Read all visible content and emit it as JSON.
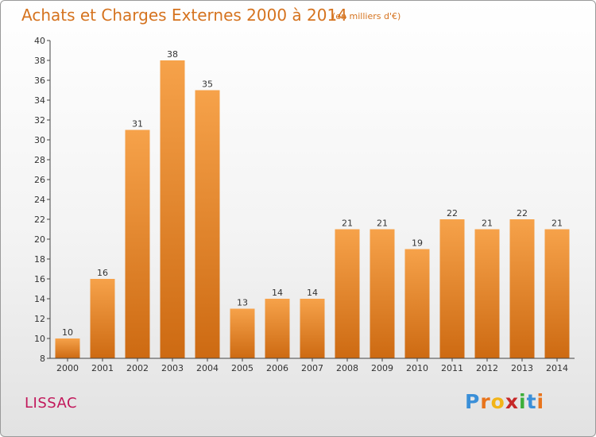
{
  "header": {
    "title": "Achats et Charges Externes 2000 à 2014",
    "unit": "(en milliers d'€)"
  },
  "commune": "LISSAC",
  "logo": {
    "text": "Proxiti"
  },
  "colors": {
    "bar_light": "#f6a24a",
    "bar_dark": "#cd6a12",
    "axis": "#444444",
    "title": "#d5731f",
    "commune": "#c2185b"
  },
  "chart_data": {
    "type": "bar",
    "title": "Achats et Charges Externes 2000 à 2014",
    "subtitle": "(en milliers d'€)",
    "xlabel": "",
    "ylabel": "",
    "categories": [
      "2000",
      "2001",
      "2002",
      "2003",
      "2004",
      "2005",
      "2006",
      "2007",
      "2008",
      "2009",
      "2010",
      "2011",
      "2012",
      "2013",
      "2014"
    ],
    "values": [
      10,
      16,
      31,
      38,
      35,
      13,
      14,
      14,
      21,
      21,
      19,
      22,
      21,
      22,
      21
    ],
    "ylim": [
      8,
      40
    ],
    "yticks": [
      "8",
      "10",
      "12",
      "14",
      "16",
      "18",
      "20",
      "22",
      "24",
      "26",
      "28",
      "30",
      "32",
      "34",
      "36",
      "38",
      "40"
    ],
    "grid": false,
    "legend": "none",
    "data_labels": true
  }
}
